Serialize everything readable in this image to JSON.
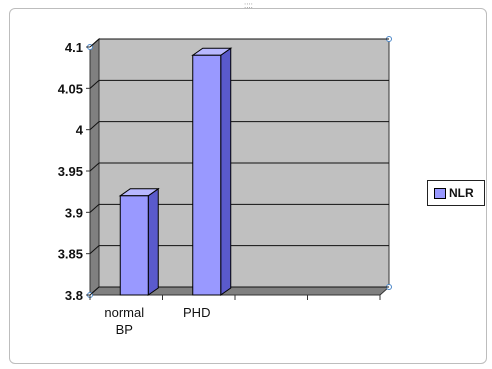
{
  "chart_data": {
    "type": "bar",
    "categories": [
      "normal BP",
      "PHD"
    ],
    "category_lines": [
      [
        "normal",
        "BP"
      ],
      [
        "PHD"
      ]
    ],
    "series": [
      {
        "name": "NLR",
        "values": [
          3.92,
          4.09
        ]
      }
    ],
    "ylim": [
      3.8,
      4.1
    ],
    "yticks": [
      "3.8",
      "3.85",
      "3.9",
      "3.95",
      "4",
      "4.05",
      "4.1"
    ],
    "grid": true,
    "style": "3d",
    "legend_position": "right"
  },
  "colors": {
    "bar_front": "#9999ff",
    "bar_side": "#5a5acc",
    "bar_top": "#b8b8ff",
    "plot_back": "#c0c0c0",
    "plot_floor": "#808080"
  }
}
